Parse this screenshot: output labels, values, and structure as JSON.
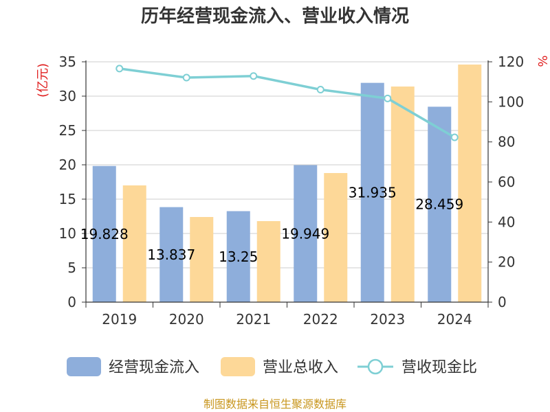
{
  "chart_data": {
    "type": "bar",
    "title": "历年经营现金流入、营业收入情况",
    "categories": [
      "2019",
      "2020",
      "2021",
      "2022",
      "2023",
      "2024"
    ],
    "series": [
      {
        "name": "经营现金流入",
        "kind": "bar",
        "axis": "left",
        "color": "#8eaedb",
        "values": [
          19.828,
          13.837,
          13.25,
          19.949,
          31.935,
          28.459
        ],
        "labels": [
          "19.828",
          "13.837",
          "13.25",
          "19.949",
          "31.935",
          "28.459"
        ]
      },
      {
        "name": "营业总收入",
        "kind": "bar",
        "axis": "left",
        "color": "#fdd898",
        "values": [
          17.0,
          12.4,
          11.8,
          18.8,
          31.4,
          34.6
        ]
      },
      {
        "name": "营收现金比",
        "kind": "line",
        "axis": "right",
        "color": "#7ecfd4",
        "values": [
          116.6,
          112.1,
          112.9,
          106.1,
          101.7,
          82.3
        ]
      }
    ],
    "y_left": {
      "label": "(亿元)",
      "ylim": [
        0,
        35
      ],
      "ticks": [
        "0",
        "5",
        "10",
        "15",
        "20",
        "25",
        "30",
        "35"
      ]
    },
    "y_right": {
      "label": "%",
      "ylim": [
        0,
        120
      ],
      "ticks": [
        "0",
        "20",
        "40",
        "60",
        "80",
        "100",
        "120"
      ]
    },
    "grid": true,
    "legend_position": "bottom"
  },
  "source": "制图数据来自恒生聚源数据库"
}
